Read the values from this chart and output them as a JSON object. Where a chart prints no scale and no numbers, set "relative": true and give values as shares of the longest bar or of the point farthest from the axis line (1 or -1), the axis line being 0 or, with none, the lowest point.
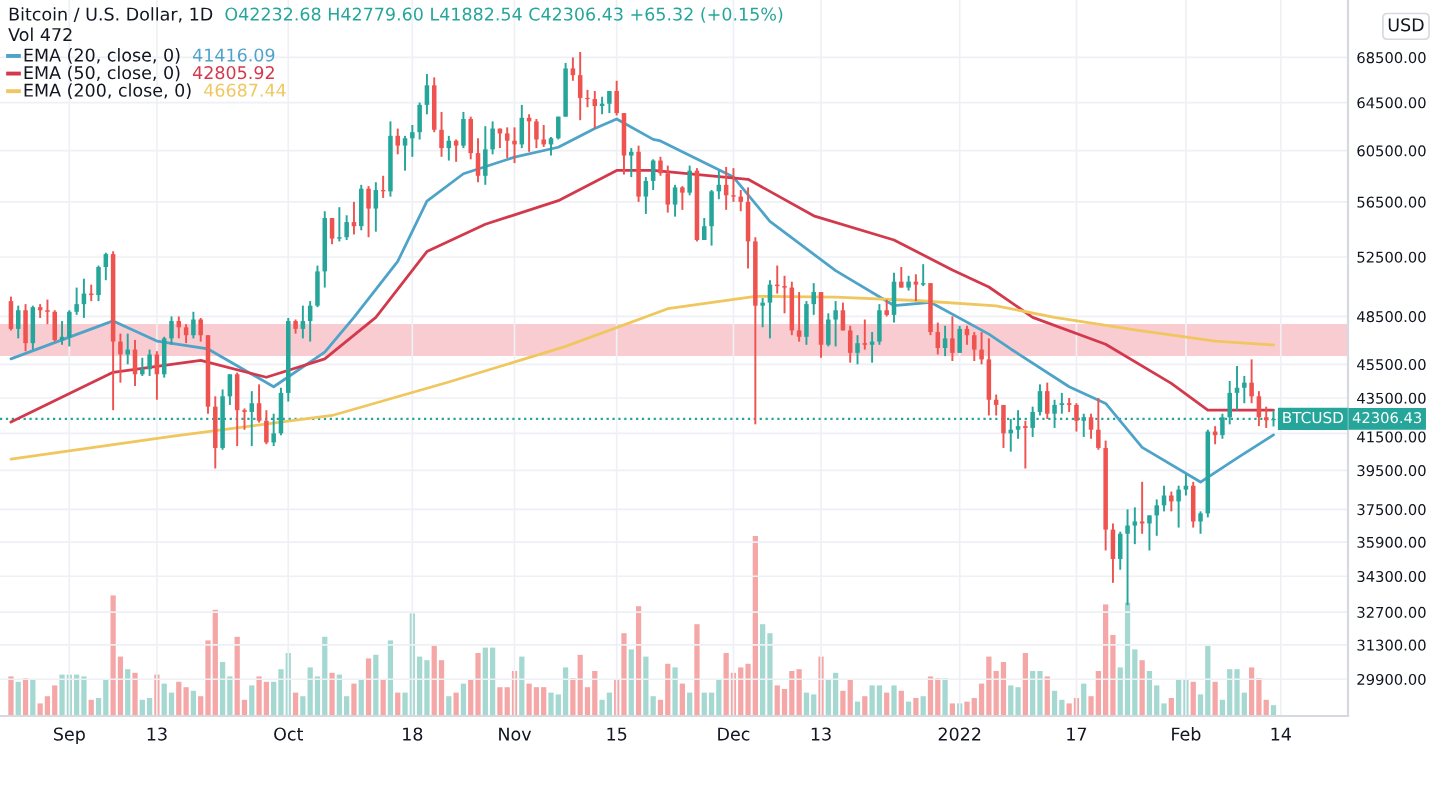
{
  "chart_data": [
    {
      "type": "candlestick",
      "title": "Bitcoin / U.S. Dollar, 1D",
      "annotations": [
        "O42232.68 H42779.60 L41882.54 C42306.43 +65.32 (+0.15%)",
        "Vol 472",
        "41416.09",
        "42805.92",
        "46687.44",
        "42306.43"
      ],
      "ylabel": "USD",
      "x": [
        "2021-08-24",
        "2021-08-25",
        "2021-08-26",
        "2021-08-27",
        "2021-08-28",
        "2021-08-29",
        "2021-08-30",
        "2021-08-31",
        "2021-09-01",
        "2021-09-02",
        "2021-09-03",
        "2021-09-04",
        "2021-09-05",
        "2021-09-06",
        "2021-09-07",
        "2021-09-08",
        "2021-09-09",
        "2021-09-10",
        "2021-09-11",
        "2021-09-12",
        "2021-09-13",
        "2021-09-14",
        "2021-09-15",
        "2021-09-16",
        "2021-09-17",
        "2021-09-18",
        "2021-09-19",
        "2021-09-20",
        "2021-09-21",
        "2021-09-22",
        "2021-09-23",
        "2021-09-24",
        "2021-09-25",
        "2021-09-26",
        "2021-09-27",
        "2021-09-28",
        "2021-09-29",
        "2021-09-30",
        "2021-10-01",
        "2021-10-02",
        "2021-10-03",
        "2021-10-04",
        "2021-10-05",
        "2021-10-06",
        "2021-10-07",
        "2021-10-08",
        "2021-10-09",
        "2021-10-10",
        "2021-10-11",
        "2021-10-12",
        "2021-10-13",
        "2021-10-14",
        "2021-10-15",
        "2021-10-16",
        "2021-10-17",
        "2021-10-18",
        "2021-10-19",
        "2021-10-20",
        "2021-10-21",
        "2021-10-22",
        "2021-10-23",
        "2021-10-24",
        "2021-10-25",
        "2021-10-26",
        "2021-10-27",
        "2021-10-28",
        "2021-10-29",
        "2021-10-30",
        "2021-10-31",
        "2021-11-01",
        "2021-11-02",
        "2021-11-03",
        "2021-11-04",
        "2021-11-05",
        "2021-11-06",
        "2021-11-07",
        "2021-11-08",
        "2021-11-09",
        "2021-11-10",
        "2021-11-11",
        "2021-11-12",
        "2021-11-13",
        "2021-11-14",
        "2021-11-15",
        "2021-11-16",
        "2021-11-17",
        "2021-11-18",
        "2021-11-19",
        "2021-11-20",
        "2021-11-21",
        "2021-11-22",
        "2021-11-23",
        "2021-11-24",
        "2021-11-25",
        "2021-11-26",
        "2021-11-27",
        "2021-11-28",
        "2021-11-29",
        "2021-11-30",
        "2021-12-01",
        "2021-12-02",
        "2021-12-03",
        "2021-12-04",
        "2021-12-05",
        "2021-12-06",
        "2021-12-07",
        "2021-12-08",
        "2021-12-09",
        "2021-12-10",
        "2021-12-11",
        "2021-12-12",
        "2021-12-13",
        "2021-12-14",
        "2021-12-15",
        "2021-12-16",
        "2021-12-17",
        "2021-12-18",
        "2021-12-19",
        "2021-12-20",
        "2021-12-21",
        "2021-12-22",
        "2021-12-23",
        "2021-12-24",
        "2021-12-25",
        "2021-12-26",
        "2021-12-27",
        "2021-12-28",
        "2021-12-29",
        "2021-12-30",
        "2021-12-31",
        "2022-01-01",
        "2022-01-02",
        "2022-01-03",
        "2022-01-04",
        "2022-01-05",
        "2022-01-06",
        "2022-01-07",
        "2022-01-08",
        "2022-01-09",
        "2022-01-10",
        "2022-01-11",
        "2022-01-12",
        "2022-01-13",
        "2022-01-14",
        "2022-01-15",
        "2022-01-16",
        "2022-01-17",
        "2022-01-18",
        "2022-01-19",
        "2022-01-20",
        "2022-01-21",
        "2022-01-22",
        "2022-01-23",
        "2022-01-24",
        "2022-01-25",
        "2022-01-26",
        "2022-01-27",
        "2022-01-28",
        "2022-01-29",
        "2022-01-30",
        "2022-01-31",
        "2022-02-01",
        "2022-02-02",
        "2022-02-03",
        "2022-02-04",
        "2022-02-05",
        "2022-02-06",
        "2022-02-07",
        "2022-02-08",
        "2022-02-09",
        "2022-02-10",
        "2022-02-11",
        "2022-02-12",
        "2022-02-13"
      ],
      "ohlc": [
        [
          49500,
          49800,
          47600,
          47700
        ],
        [
          47700,
          49200,
          47100,
          48900
        ],
        [
          48900,
          49300,
          46300,
          46800
        ],
        [
          46800,
          49200,
          46400,
          49100
        ],
        [
          49100,
          49300,
          48400,
          48900
        ],
        [
          48900,
          49600,
          48000,
          48800
        ],
        [
          48800,
          48900,
          46900,
          47000
        ],
        [
          47000,
          48200,
          46700,
          47200
        ],
        [
          47200,
          48900,
          46600,
          48800
        ],
        [
          48800,
          50400,
          48600,
          49300
        ],
        [
          49300,
          51000,
          48400,
          50000
        ],
        [
          50000,
          50600,
          49500,
          49900
        ],
        [
          49900,
          51900,
          49500,
          51800
        ],
        [
          51800,
          52800,
          50900,
          52700
        ],
        [
          52700,
          52900,
          42800,
          46900
        ],
        [
          46900,
          47400,
          44400,
          46100
        ],
        [
          46100,
          47400,
          45500,
          46400
        ],
        [
          46400,
          47000,
          44200,
          44900
        ],
        [
          44900,
          45900,
          44800,
          45200
        ],
        [
          45200,
          46400,
          44800,
          46100
        ],
        [
          46100,
          46300,
          43400,
          44900
        ],
        [
          44900,
          47200,
          44700,
          47100
        ],
        [
          47100,
          48500,
          46700,
          48200
        ],
        [
          48200,
          48500,
          47100,
          47800
        ],
        [
          47800,
          48000,
          46800,
          47300
        ],
        [
          47300,
          48800,
          47100,
          48300
        ],
        [
          48300,
          48400,
          46900,
          47300
        ],
        [
          47300,
          47300,
          42600,
          43000
        ],
        [
          43000,
          43600,
          39600,
          40700
        ],
        [
          40700,
          44000,
          40600,
          43600
        ],
        [
          43600,
          44900,
          43100,
          44900
        ],
        [
          44900,
          45000,
          40800,
          42800
        ],
        [
          42800,
          42900,
          41700,
          42700
        ],
        [
          42700,
          43900,
          40800,
          43200
        ],
        [
          43200,
          44300,
          42100,
          42200
        ],
        [
          42200,
          42800,
          40900,
          41000
        ],
        [
          41000,
          42600,
          40800,
          41500
        ],
        [
          41500,
          44100,
          41400,
          43800
        ],
        [
          43800,
          48400,
          43300,
          48200
        ],
        [
          48200,
          48300,
          47400,
          47700
        ],
        [
          47700,
          49200,
          47100,
          48200
        ],
        [
          48200,
          49500,
          46900,
          49200
        ],
        [
          49200,
          51900,
          49100,
          51500
        ],
        [
          51500,
          55800,
          50400,
          55300
        ],
        [
          55300,
          55300,
          53400,
          53800
        ],
        [
          53800,
          56100,
          53600,
          53900
        ],
        [
          53900,
          55500,
          53700,
          55000
        ],
        [
          55000,
          56500,
          54100,
          54700
        ],
        [
          54700,
          57800,
          54400,
          57500
        ],
        [
          57500,
          57700,
          53900,
          56000
        ],
        [
          56000,
          58000,
          54300,
          57400
        ],
        [
          57400,
          58500,
          56800,
          57300
        ],
        [
          57300,
          62900,
          56900,
          61700
        ],
        [
          61700,
          62300,
          60200,
          60900
        ],
        [
          60900,
          61700,
          58900,
          61500
        ],
        [
          61500,
          62600,
          60000,
          62000
        ],
        [
          62000,
          64500,
          61400,
          64300
        ],
        [
          64300,
          67000,
          63500,
          66000
        ],
        [
          66000,
          66700,
          62000,
          62200
        ],
        [
          62200,
          63700,
          60000,
          60700
        ],
        [
          60700,
          61700,
          59700,
          61300
        ],
        [
          61300,
          61400,
          59600,
          60900
        ],
        [
          60900,
          63700,
          60700,
          63100
        ],
        [
          63100,
          63300,
          59800,
          60300
        ],
        [
          60300,
          61500,
          58000,
          58500
        ],
        [
          58500,
          62500,
          57800,
          60600
        ],
        [
          60600,
          62900,
          60200,
          62300
        ],
        [
          62300,
          62300,
          60700,
          61900
        ],
        [
          61900,
          62400,
          59900,
          61300
        ],
        [
          61300,
          62400,
          59500,
          61000
        ],
        [
          61000,
          64300,
          60700,
          63200
        ],
        [
          63200,
          63500,
          60400,
          62900
        ],
        [
          62900,
          63100,
          60700,
          61400
        ],
        [
          61400,
          62600,
          60800,
          61000
        ],
        [
          61000,
          61600,
          60100,
          61500
        ],
        [
          61500,
          63300,
          61400,
          63300
        ],
        [
          63300,
          68000,
          63300,
          67500
        ],
        [
          67500,
          68500,
          66400,
          66900
        ],
        [
          66900,
          69000,
          63000,
          64900
        ],
        [
          64900,
          65600,
          64100,
          64800
        ],
        [
          64800,
          65500,
          62300,
          64200
        ],
        [
          64200,
          65000,
          63500,
          64400
        ],
        [
          64400,
          65500,
          63600,
          65500
        ],
        [
          65500,
          66400,
          63400,
          63600
        ],
        [
          63600,
          63600,
          58600,
          60100
        ],
        [
          60100,
          60700,
          58400,
          60400
        ],
        [
          60400,
          60900,
          56500,
          56900
        ],
        [
          56900,
          58400,
          55600,
          58100
        ],
        [
          58100,
          59800,
          57400,
          59700
        ],
        [
          59700,
          60000,
          58500,
          58700
        ],
        [
          58700,
          59300,
          55700,
          56300
        ],
        [
          56300,
          57800,
          55400,
          57600
        ],
        [
          57600,
          57700,
          55900,
          57200
        ],
        [
          57200,
          59300,
          57000,
          58900
        ],
        [
          58900,
          59100,
          53600,
          53700
        ],
        [
          53700,
          55300,
          53700,
          54700
        ],
        [
          54700,
          57400,
          53300,
          57300
        ],
        [
          57300,
          58900,
          56700,
          57800
        ],
        [
          57800,
          59200,
          55900,
          57000
        ],
        [
          57000,
          59100,
          56500,
          56900
        ],
        [
          56900,
          57400,
          55800,
          56500
        ],
        [
          56500,
          57600,
          51700,
          53600
        ],
        [
          53600,
          53900,
          42000,
          49200
        ],
        [
          49200,
          49700,
          47800,
          49400
        ],
        [
          49400,
          50900,
          47100,
          50600
        ],
        [
          50600,
          51900,
          50000,
          50500
        ],
        [
          50500,
          51200,
          48700,
          50400
        ],
        [
          50400,
          50800,
          47300,
          47600
        ],
        [
          47600,
          50100,
          46900,
          47200
        ],
        [
          47200,
          49500,
          46700,
          49300
        ],
        [
          49300,
          50700,
          48600,
          50100
        ],
        [
          50100,
          50100,
          45900,
          46700
        ],
        [
          46700,
          48700,
          46600,
          48300
        ],
        [
          48300,
          49500,
          46600,
          48900
        ],
        [
          48900,
          49400,
          47600,
          47600
        ],
        [
          47600,
          47900,
          45600,
          46200
        ],
        [
          46200,
          47300,
          45500,
          46800
        ],
        [
          46800,
          48300,
          46400,
          46700
        ],
        [
          46700,
          47500,
          45600,
          46900
        ],
        [
          46900,
          49300,
          46700,
          48900
        ],
        [
          48900,
          49600,
          48500,
          48600
        ],
        [
          48600,
          51400,
          48100,
          50800
        ],
        [
          50800,
          51800,
          50400,
          50400
        ],
        [
          50400,
          51200,
          50200,
          50800
        ],
        [
          50800,
          51300,
          49500,
          50600
        ],
        [
          50600,
          52000,
          50500,
          50700
        ],
        [
          50700,
          50700,
          47300,
          47500
        ],
        [
          47500,
          48100,
          46100,
          46500
        ],
        [
          46500,
          47900,
          46000,
          47100
        ],
        [
          47100,
          48500,
          45700,
          46200
        ],
        [
          46200,
          47900,
          46200,
          47700
        ],
        [
          47700,
          47900,
          46700,
          47300
        ],
        [
          47300,
          47500,
          45700,
          46400
        ],
        [
          46400,
          47500,
          45500,
          45800
        ],
        [
          45800,
          47100,
          42500,
          43400
        ],
        [
          43400,
          43700,
          42500,
          43100
        ],
        [
          43100,
          43100,
          40700,
          41500
        ],
        [
          41500,
          42300,
          40500,
          41700
        ],
        [
          41700,
          42800,
          41200,
          41900
        ],
        [
          41900,
          42200,
          39600,
          41800
        ],
        [
          41800,
          43000,
          41300,
          42700
        ],
        [
          42700,
          44300,
          42500,
          43900
        ],
        [
          43900,
          44400,
          42300,
          42600
        ],
        [
          42600,
          43400,
          41800,
          43100
        ],
        [
          43100,
          43800,
          42600,
          43200
        ],
        [
          43200,
          43500,
          42700,
          43100
        ],
        [
          43100,
          43200,
          41600,
          42200
        ],
        [
          42200,
          42600,
          41300,
          42400
        ],
        [
          42400,
          42600,
          41200,
          41700
        ],
        [
          41700,
          43500,
          40600,
          40700
        ],
        [
          40700,
          41100,
          35500,
          36500
        ],
        [
          36500,
          36800,
          34000,
          35100
        ],
        [
          35100,
          36400,
          34600,
          36300
        ],
        [
          36300,
          37500,
          33000,
          36700
        ],
        [
          36700,
          37600,
          35800,
          36900
        ],
        [
          36900,
          38900,
          36300,
          36800
        ],
        [
          36800,
          37200,
          35500,
          37200
        ],
        [
          37200,
          38000,
          36200,
          37700
        ],
        [
          37700,
          38700,
          37400,
          38200
        ],
        [
          38200,
          38400,
          37400,
          37900
        ],
        [
          37900,
          38700,
          36600,
          38500
        ],
        [
          38500,
          39300,
          38200,
          38700
        ],
        [
          38700,
          38900,
          36600,
          36900
        ],
        [
          36900,
          37400,
          36300,
          37300
        ],
        [
          37300,
          41700,
          37100,
          41600
        ],
        [
          41600,
          41900,
          40900,
          41400
        ],
        [
          41400,
          42600,
          41200,
          42400
        ],
        [
          42400,
          44500,
          42000,
          43800
        ],
        [
          43800,
          45400,
          42800,
          44100
        ],
        [
          44100,
          44800,
          43200,
          44400
        ],
        [
          44400,
          45800,
          43200,
          43600
        ],
        [
          43600,
          43900,
          41900,
          42400
        ],
        [
          42400,
          43000,
          41800,
          42230
        ],
        [
          42232.68,
          42779.6,
          41882.54,
          42306.43
        ]
      ],
      "colors": [
        "#ef5350",
        "#26a69a",
        "#ef5350",
        "#26a69a",
        "#ef5350",
        "#ef5350",
        "#ef5350",
        "#26a69a",
        "#26a69a",
        "#26a69a",
        "#26a69a",
        "#ef5350",
        "#26a69a",
        "#26a69a",
        "#ef5350",
        "#ef5350",
        "#26a69a",
        "#ef5350",
        "#26a69a",
        "#26a69a",
        "#ef5350",
        "#26a69a",
        "#26a69a",
        "#ef5350",
        "#ef5350",
        "#26a69a",
        "#ef5350",
        "#ef5350",
        "#ef5350",
        "#26a69a",
        "#26a69a",
        "#ef5350",
        "#ef5350",
        "#26a69a",
        "#ef5350",
        "#ef5350",
        "#26a69a",
        "#26a69a",
        "#26a69a",
        "#ef5350",
        "#26a69a",
        "#26a69a",
        "#26a69a",
        "#26a69a",
        "#ef5350",
        "#26a69a",
        "#26a69a",
        "#ef5350",
        "#26a69a",
        "#ef5350",
        "#26a69a",
        "#ef5350",
        "#26a69a",
        "#ef5350",
        "#26a69a",
        "#26a69a",
        "#26a69a",
        "#26a69a",
        "#ef5350",
        "#ef5350",
        "#26a69a",
        "#ef5350",
        "#26a69a",
        "#ef5350",
        "#ef5350",
        "#26a69a",
        "#26a69a",
        "#ef5350",
        "#ef5350",
        "#ef5350",
        "#26a69a",
        "#ef5350",
        "#ef5350",
        "#ef5350",
        "#26a69a",
        "#26a69a",
        "#26a69a",
        "#ef5350",
        "#ef5350",
        "#ef5350",
        "#ef5350",
        "#26a69a",
        "#26a69a",
        "#ef5350",
        "#ef5350",
        "#26a69a",
        "#ef5350",
        "#26a69a",
        "#26a69a",
        "#ef5350",
        "#ef5350",
        "#26a69a",
        "#ef5350",
        "#26a69a",
        "#ef5350",
        "#26a69a",
        "#26a69a",
        "#26a69a",
        "#ef5350",
        "#ef5350",
        "#ef5350",
        "#ef5350",
        "#ef5350",
        "#26a69a",
        "#26a69a",
        "#ef5350",
        "#ef5350",
        "#ef5350",
        "#ef5350",
        "#26a69a",
        "#26a69a",
        "#ef5350",
        "#26a69a",
        "#26a69a",
        "#ef5350",
        "#ef5350",
        "#26a69a",
        "#ef5350",
        "#26a69a",
        "#26a69a",
        "#ef5350",
        "#26a69a",
        "#ef5350",
        "#26a69a",
        "#ef5350",
        "#26a69a",
        "#ef5350",
        "#ef5350",
        "#26a69a",
        "#ef5350",
        "#26a69a",
        "#ef5350",
        "#ef5350",
        "#ef5350",
        "#ef5350",
        "#ef5350",
        "#ef5350",
        "#26a69a",
        "#26a69a",
        "#ef5350",
        "#26a69a",
        "#26a69a",
        "#ef5350",
        "#26a69a",
        "#26a69a",
        "#ef5350",
        "#ef5350",
        "#26a69a",
        "#ef5350",
        "#ef5350",
        "#ef5350",
        "#ef5350",
        "#26a69a",
        "#26a69a",
        "#26a69a",
        "#ef5350",
        "#26a69a",
        "#26a69a",
        "#26a69a",
        "#ef5350",
        "#26a69a",
        "#26a69a",
        "#ef5350",
        "#26a69a",
        "#26a69a",
        "#ef5350",
        "#26a69a",
        "#26a69a",
        "#26a69a",
        "#26a69a",
        "#ef5350",
        "#ef5350",
        "#ef5350",
        "#26a69a"
      ],
      "series": [
        {
          "type": "line",
          "name": "EMA (20, close, 0)",
          "color": "#4ea3c8",
          "x": [
            "2021-08-24",
            "2021-09-07",
            "2021-09-13",
            "2021-09-20",
            "2021-09-29",
            "2021-10-06",
            "2021-10-10",
            "2021-10-16",
            "2021-10-20",
            "2021-10-25",
            "2021-11-01",
            "2021-11-07",
            "2021-11-12",
            "2021-11-15",
            "2021-11-20",
            "2021-11-21",
            "2021-12-01",
            "2021-12-06",
            "2021-12-15",
            "2021-12-23",
            "2021-12-28",
            "2022-01-05",
            "2022-01-08",
            "2022-01-16",
            "2022-01-21",
            "2022-01-26",
            "2022-02-03",
            "2022-02-08",
            "2022-02-13"
          ],
          "values": [
            45830,
            48210,
            46930,
            46440,
            44160,
            46250,
            48440,
            52190,
            56560,
            58660,
            59970,
            60770,
            62300,
            63100,
            61410,
            61280,
            58400,
            55050,
            51550,
            49210,
            49420,
            47370,
            46440,
            44160,
            43190,
            40730,
            38890,
            40150,
            41416.09
          ]
        },
        {
          "type": "line",
          "name": "EMA (50, close, 0)",
          "color": "#d3394c",
          "x": [
            "2021-08-24",
            "2021-09-07",
            "2021-09-19",
            "2021-09-28",
            "2021-10-06",
            "2021-10-13",
            "2021-10-20",
            "2021-10-28",
            "2021-11-07",
            "2021-11-15",
            "2021-11-20",
            "2021-12-03",
            "2021-12-12",
            "2021-12-23",
            "2021-12-31",
            "2022-01-05",
            "2022-01-11",
            "2022-01-21",
            "2022-01-30",
            "2022-02-04",
            "2022-02-13"
          ],
          "values": [
            42130,
            45020,
            45740,
            44720,
            45830,
            48440,
            52880,
            54840,
            56590,
            58920,
            58920,
            58230,
            55460,
            53700,
            51600,
            50440,
            48440,
            46730,
            44360,
            42810,
            42805.92
          ]
        },
        {
          "type": "line",
          "name": "EMA (200, close, 0)",
          "color": "#f0c75e",
          "x": [
            "2021-08-24",
            "2021-09-15",
            "2021-10-07",
            "2021-10-23",
            "2021-11-08",
            "2021-11-22",
            "2021-12-04",
            "2021-12-15",
            "2021-12-26",
            "2022-01-06",
            "2022-01-14",
            "2022-01-25",
            "2022-02-05",
            "2022-02-13"
          ],
          "values": [
            40100,
            41330,
            42500,
            44440,
            46600,
            49000,
            49820,
            49760,
            49540,
            49190,
            48440,
            47640,
            46930,
            46687.44
          ]
        }
      ],
      "xlim": [
        "2021-08-22T12:00",
        "2022-02-23T05:00"
      ],
      "xticks": [
        {
          "value": "2021-09-01",
          "label": "Sep"
        },
        {
          "value": "2021-09-13",
          "label": "13"
        },
        {
          "value": "2021-10-01",
          "label": "Oct"
        },
        {
          "value": "2021-10-18",
          "label": "18"
        },
        {
          "value": "2021-11-01",
          "label": "Nov"
        },
        {
          "value": "2021-11-15",
          "label": "15"
        },
        {
          "value": "2021-12-01",
          "label": "Dec"
        },
        {
          "value": "2021-12-13",
          "label": "13"
        },
        {
          "value": "2022-01-01",
          "label": "2022"
        },
        {
          "value": "2022-01-17",
          "label": "17"
        },
        {
          "value": "2022-02-01",
          "label": "Feb"
        },
        {
          "value": "2022-02-14",
          "label": "14"
        }
      ],
      "ylim": [
        28470,
        73950
      ],
      "yticks": [
        {
          "value": 68500,
          "label": "68500.00"
        },
        {
          "value": 64500,
          "label": "64500.00"
        },
        {
          "value": 60500,
          "label": "60500.00"
        },
        {
          "value": 56500,
          "label": "56500.00"
        },
        {
          "value": 52500,
          "label": "52500.00"
        },
        {
          "value": 48500,
          "label": "48500.00"
        },
        {
          "value": 45500,
          "label": "45500.00"
        },
        {
          "value": 43500,
          "label": "43500.00"
        },
        {
          "value": 41500,
          "label": "41500.00"
        },
        {
          "value": 39500,
          "label": "39500.00"
        },
        {
          "value": 37500,
          "label": "37500.00"
        },
        {
          "value": 35900,
          "label": "35900.00"
        },
        {
          "value": 34300,
          "label": "34300.00"
        },
        {
          "value": 32700,
          "label": "32700.00"
        },
        {
          "value": 31300,
          "label": "31300.00"
        },
        {
          "value": 29900,
          "label": "29900.00"
        }
      ],
      "log": true,
      "grid": true,
      "legend": "top left",
      "ref_lines": [
        {
          "axis": "y",
          "value": 42306.43,
          "label": "BTCUSD",
          "color": "#26a69a",
          "line_style": "dotted"
        }
      ],
      "bands": [
        {
          "axis": "y",
          "from": 46000,
          "to": 48010,
          "color": "#f9ccd1"
        }
      ]
    },
    {
      "type": "bar",
      "relative": true,
      "tick_labels": false,
      "x": [
        "2021-08-24",
        "2021-08-25",
        "2021-08-26",
        "2021-08-27",
        "2021-08-28",
        "2021-08-29",
        "2021-08-30",
        "2021-08-31",
        "2021-09-01",
        "2021-09-02",
        "2021-09-03",
        "2021-09-04",
        "2021-09-05",
        "2021-09-06",
        "2021-09-07",
        "2021-09-08",
        "2021-09-09",
        "2021-09-10",
        "2021-09-11",
        "2021-09-12",
        "2021-09-13",
        "2021-09-14",
        "2021-09-15",
        "2021-09-16",
        "2021-09-17",
        "2021-09-18",
        "2021-09-19",
        "2021-09-20",
        "2021-09-21",
        "2021-09-22",
        "2021-09-23",
        "2021-09-24",
        "2021-09-25",
        "2021-09-26",
        "2021-09-27",
        "2021-09-28",
        "2021-09-29",
        "2021-09-30",
        "2021-10-01",
        "2021-10-02",
        "2021-10-03",
        "2021-10-04",
        "2021-10-05",
        "2021-10-06",
        "2021-10-07",
        "2021-10-08",
        "2021-10-09",
        "2021-10-10",
        "2021-10-11",
        "2021-10-12",
        "2021-10-13",
        "2021-10-14",
        "2021-10-15",
        "2021-10-16",
        "2021-10-17",
        "2021-10-18",
        "2021-10-19",
        "2021-10-20",
        "2021-10-21",
        "2021-10-22",
        "2021-10-23",
        "2021-10-24",
        "2021-10-25",
        "2021-10-26",
        "2021-10-27",
        "2021-10-28",
        "2021-10-29",
        "2021-10-30",
        "2021-10-31",
        "2021-11-01",
        "2021-11-02",
        "2021-11-03",
        "2021-11-04",
        "2021-11-05",
        "2021-11-06",
        "2021-11-07",
        "2021-11-08",
        "2021-11-09",
        "2021-11-10",
        "2021-11-11",
        "2021-11-12",
        "2021-11-13",
        "2021-11-14",
        "2021-11-15",
        "2021-11-16",
        "2021-11-17",
        "2021-11-18",
        "2021-11-19",
        "2021-11-20",
        "2021-11-21",
        "2021-11-22",
        "2021-11-23",
        "2021-11-24",
        "2021-11-25",
        "2021-11-26",
        "2021-11-27",
        "2021-11-28",
        "2021-11-29",
        "2021-11-30",
        "2021-12-01",
        "2021-12-02",
        "2021-12-03",
        "2021-12-04",
        "2021-12-05",
        "2021-12-06",
        "2021-12-07",
        "2021-12-08",
        "2021-12-09",
        "2021-12-10",
        "2021-12-11",
        "2021-12-12",
        "2021-12-13",
        "2021-12-14",
        "2021-12-15",
        "2021-12-16",
        "2021-12-17",
        "2021-12-18",
        "2021-12-19",
        "2021-12-20",
        "2021-12-21",
        "2021-12-22",
        "2021-12-23",
        "2021-12-24",
        "2021-12-25",
        "2021-12-26",
        "2021-12-27",
        "2021-12-28",
        "2021-12-29",
        "2021-12-30",
        "2021-12-31",
        "2022-01-01",
        "2022-01-02",
        "2022-01-03",
        "2022-01-04",
        "2022-01-05",
        "2022-01-06",
        "2022-01-07",
        "2022-01-08",
        "2022-01-09",
        "2022-01-10",
        "2022-01-11",
        "2022-01-12",
        "2022-01-13",
        "2022-01-14",
        "2022-01-15",
        "2022-01-16",
        "2022-01-17",
        "2022-01-18",
        "2022-01-19",
        "2022-01-20",
        "2022-01-21",
        "2022-01-22",
        "2022-01-23",
        "2022-01-24",
        "2022-01-25",
        "2022-01-26",
        "2022-01-27",
        "2022-01-28",
        "2022-01-29",
        "2022-01-30",
        "2022-01-31",
        "2022-02-01",
        "2022-02-02",
        "2022-02-03",
        "2022-02-04",
        "2022-02-05",
        "2022-02-06",
        "2022-02-07",
        "2022-02-08",
        "2022-02-09",
        "2022-02-10",
        "2022-02-11",
        "2022-02-12",
        "2022-02-13"
      ],
      "values": [
        0.22,
        0.19,
        0.21,
        0.2,
        0.07,
        0.11,
        0.17,
        0.23,
        0.23,
        0.23,
        0.22,
        0.09,
        0.1,
        0.2,
        0.67,
        0.33,
        0.26,
        0.24,
        0.09,
        0.1,
        0.23,
        0.18,
        0.13,
        0.19,
        0.16,
        0.14,
        0.11,
        0.42,
        0.59,
        0.3,
        0.22,
        0.44,
        0.09,
        0.17,
        0.22,
        0.19,
        0.19,
        0.26,
        0.35,
        0.13,
        0.11,
        0.27,
        0.22,
        0.44,
        0.24,
        0.23,
        0.11,
        0.18,
        0.2,
        0.32,
        0.34,
        0.2,
        0.42,
        0.13,
        0.13,
        0.57,
        0.33,
        0.31,
        0.39,
        0.31,
        0.11,
        0.13,
        0.18,
        0.2,
        0.35,
        0.38,
        0.38,
        0.16,
        0.16,
        0.25,
        0.33,
        0.18,
        0.16,
        0.16,
        0.13,
        0.12,
        0.27,
        0.21,
        0.34,
        0.16,
        0.25,
        0.09,
        0.13,
        0.2,
        0.46,
        0.37,
        0.61,
        0.33,
        0.11,
        0.09,
        0.29,
        0.27,
        0.18,
        0.13,
        0.51,
        0.13,
        0.13,
        0.2,
        0.35,
        0.24,
        0.27,
        0.29,
        1.0,
        0.51,
        0.46,
        0.17,
        0.15,
        0.25,
        0.26,
        0.13,
        0.12,
        0.33,
        0.2,
        0.24,
        0.14,
        0.2,
        0.08,
        0.11,
        0.17,
        0.17,
        0.13,
        0.17,
        0.14,
        0.08,
        0.1,
        0.11,
        0.22,
        0.21,
        0.21,
        0.07,
        0.07,
        0.08,
        0.1,
        0.18,
        0.33,
        0.25,
        0.3,
        0.17,
        0.16,
        0.35,
        0.25,
        0.25,
        0.22,
        0.14,
        0.09,
        0.07,
        0.1,
        0.18,
        0.11,
        0.25,
        0.62,
        0.45,
        0.27,
        0.63,
        0.37,
        0.31,
        0.25,
        0.17,
        0.07,
        0.1,
        0.2,
        0.2,
        0.19,
        0.12,
        0.39,
        0.19,
        0.09,
        0.26,
        0.26,
        0.13,
        0.27,
        0.21,
        0.09,
        0.06
      ],
      "colors": [
        "#f4a7a6",
        "#a5d8d1",
        "#f4a7a6",
        "#a5d8d1",
        "#f4a7a6",
        "#f4a7a6",
        "#f4a7a6",
        "#a5d8d1",
        "#a5d8d1",
        "#a5d8d1",
        "#a5d8d1",
        "#f4a7a6",
        "#a5d8d1",
        "#a5d8d1",
        "#f4a7a6",
        "#f4a7a6",
        "#a5d8d1",
        "#f4a7a6",
        "#a5d8d1",
        "#a5d8d1",
        "#f4a7a6",
        "#a5d8d1",
        "#a5d8d1",
        "#f4a7a6",
        "#f4a7a6",
        "#a5d8d1",
        "#f4a7a6",
        "#f4a7a6",
        "#f4a7a6",
        "#a5d8d1",
        "#a5d8d1",
        "#f4a7a6",
        "#f4a7a6",
        "#a5d8d1",
        "#f4a7a6",
        "#f4a7a6",
        "#a5d8d1",
        "#a5d8d1",
        "#a5d8d1",
        "#f4a7a6",
        "#a5d8d1",
        "#a5d8d1",
        "#a5d8d1",
        "#a5d8d1",
        "#f4a7a6",
        "#a5d8d1",
        "#a5d8d1",
        "#f4a7a6",
        "#a5d8d1",
        "#f4a7a6",
        "#a5d8d1",
        "#f4a7a6",
        "#a5d8d1",
        "#f4a7a6",
        "#a5d8d1",
        "#a5d8d1",
        "#a5d8d1",
        "#a5d8d1",
        "#f4a7a6",
        "#f4a7a6",
        "#a5d8d1",
        "#f4a7a6",
        "#a5d8d1",
        "#f4a7a6",
        "#f4a7a6",
        "#a5d8d1",
        "#a5d8d1",
        "#f4a7a6",
        "#f4a7a6",
        "#f4a7a6",
        "#a5d8d1",
        "#f4a7a6",
        "#f4a7a6",
        "#f4a7a6",
        "#a5d8d1",
        "#a5d8d1",
        "#a5d8d1",
        "#f4a7a6",
        "#f4a7a6",
        "#f4a7a6",
        "#f4a7a6",
        "#a5d8d1",
        "#a5d8d1",
        "#f4a7a6",
        "#f4a7a6",
        "#a5d8d1",
        "#f4a7a6",
        "#a5d8d1",
        "#a5d8d1",
        "#f4a7a6",
        "#f4a7a6",
        "#a5d8d1",
        "#f4a7a6",
        "#a5d8d1",
        "#f4a7a6",
        "#a5d8d1",
        "#a5d8d1",
        "#a5d8d1",
        "#f4a7a6",
        "#f4a7a6",
        "#f4a7a6",
        "#f4a7a6",
        "#f4a7a6",
        "#a5d8d1",
        "#a5d8d1",
        "#f4a7a6",
        "#f4a7a6",
        "#f4a7a6",
        "#f4a7a6",
        "#a5d8d1",
        "#a5d8d1",
        "#f4a7a6",
        "#a5d8d1",
        "#a5d8d1",
        "#f4a7a6",
        "#f4a7a6",
        "#a5d8d1",
        "#f4a7a6",
        "#a5d8d1",
        "#a5d8d1",
        "#f4a7a6",
        "#a5d8d1",
        "#f4a7a6",
        "#a5d8d1",
        "#f4a7a6",
        "#a5d8d1",
        "#f4a7a6",
        "#f4a7a6",
        "#a5d8d1",
        "#f4a7a6",
        "#a5d8d1",
        "#f4a7a6",
        "#f4a7a6",
        "#f4a7a6",
        "#f4a7a6",
        "#f4a7a6",
        "#f4a7a6",
        "#a5d8d1",
        "#a5d8d1",
        "#f4a7a6",
        "#a5d8d1",
        "#a5d8d1",
        "#f4a7a6",
        "#a5d8d1",
        "#a5d8d1",
        "#f4a7a6",
        "#f4a7a6",
        "#a5d8d1",
        "#f4a7a6",
        "#f4a7a6",
        "#f4a7a6",
        "#f4a7a6",
        "#a5d8d1",
        "#a5d8d1",
        "#a5d8d1",
        "#f4a7a6",
        "#a5d8d1",
        "#a5d8d1",
        "#a5d8d1",
        "#f4a7a6",
        "#a5d8d1",
        "#a5d8d1",
        "#f4a7a6",
        "#a5d8d1",
        "#a5d8d1",
        "#f4a7a6",
        "#a5d8d1",
        "#a5d8d1",
        "#a5d8d1",
        "#a5d8d1",
        "#f4a7a6",
        "#f4a7a6",
        "#f4a7a6",
        "#a5d8d1"
      ],
      "xlim": [
        "2021-08-22T12:00",
        "2022-02-23T05:00"
      ]
    }
  ]
}
